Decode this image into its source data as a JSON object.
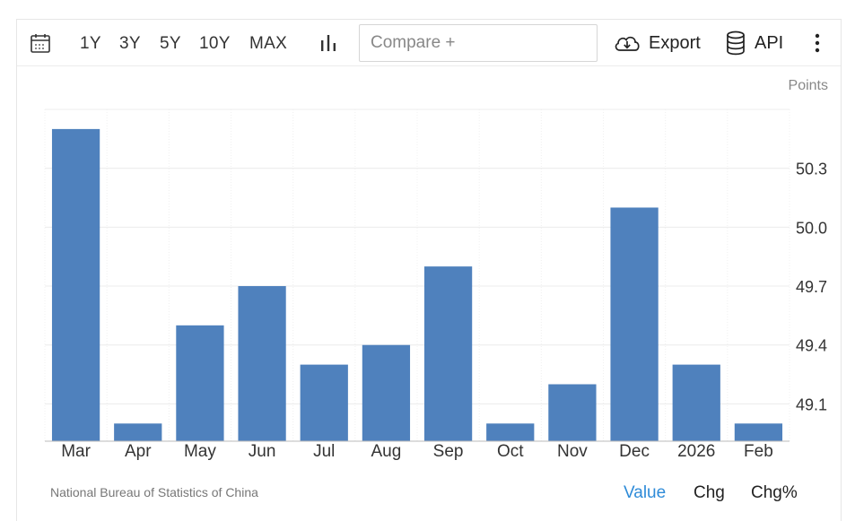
{
  "toolbar": {
    "ranges": [
      "1Y",
      "3Y",
      "5Y",
      "10Y",
      "MAX"
    ],
    "compare_placeholder": "Compare +",
    "export_label": "Export",
    "api_label": "API",
    "icons": {
      "calendar": "calendar-icon",
      "chart_type": "bar-chart-icon",
      "export": "cloud-download-icon",
      "api": "database-icon",
      "more": "more-vertical-icon"
    }
  },
  "chart_data": {
    "type": "bar",
    "categories": [
      "Mar",
      "Apr",
      "May",
      "Jun",
      "Jul",
      "Aug",
      "Sep",
      "Oct",
      "Nov",
      "Dec",
      "2026",
      "Feb"
    ],
    "values": [
      50.5,
      49.0,
      49.5,
      49.7,
      49.3,
      49.4,
      49.8,
      49.0,
      49.2,
      50.1,
      49.3,
      49.0
    ],
    "ylabel": "Points",
    "yticks": [
      49.1,
      49.4,
      49.7,
      50.0,
      50.3
    ],
    "ylim": [
      48.91,
      50.6
    ],
    "y_axis_position": "right",
    "grid": true,
    "bar_color": "#4f81bd"
  },
  "footer": {
    "source": "National Bureau of Statistics of China",
    "modes": [
      "Value",
      "Chg",
      "Chg%"
    ],
    "active_mode": "Value",
    "active_color": "#2e8bd8"
  }
}
